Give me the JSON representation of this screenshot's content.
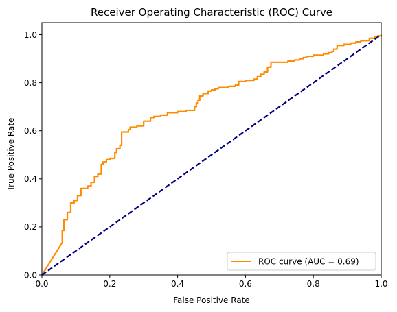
{
  "chart_data": {
    "type": "line",
    "title": "Receiver Operating Characteristic (ROC) Curve",
    "xlabel": "False Positive Rate",
    "ylabel": "True Positive Rate",
    "xlim": [
      0.0,
      1.0
    ],
    "ylim": [
      0.0,
      1.05
    ],
    "x_ticks": [
      "0.0",
      "0.2",
      "0.4",
      "0.6",
      "0.8",
      "1.0"
    ],
    "y_ticks": [
      "0.0",
      "0.2",
      "0.4",
      "0.6",
      "0.8",
      "1.0"
    ],
    "grid": false,
    "legend_position": "lower-right",
    "series": [
      {
        "name": "ROC curve (AUC = 0.69)",
        "color": "#ff8c00",
        "style": "solid",
        "x": [
          0.0,
          0.06,
          0.06,
          0.065,
          0.065,
          0.075,
          0.075,
          0.085,
          0.085,
          0.095,
          0.095,
          0.105,
          0.105,
          0.115,
          0.115,
          0.135,
          0.135,
          0.145,
          0.145,
          0.155,
          0.155,
          0.165,
          0.165,
          0.175,
          0.175,
          0.18,
          0.18,
          0.19,
          0.19,
          0.2,
          0.2,
          0.215,
          0.215,
          0.22,
          0.22,
          0.23,
          0.23,
          0.235,
          0.235,
          0.255,
          0.255,
          0.26,
          0.26,
          0.28,
          0.28,
          0.3,
          0.3,
          0.32,
          0.32,
          0.33,
          0.33,
          0.35,
          0.35,
          0.37,
          0.37,
          0.4,
          0.4,
          0.425,
          0.425,
          0.45,
          0.45,
          0.455,
          0.455,
          0.46,
          0.46,
          0.465,
          0.465,
          0.475,
          0.475,
          0.49,
          0.49,
          0.5,
          0.5,
          0.51,
          0.51,
          0.52,
          0.52,
          0.55,
          0.55,
          0.57,
          0.57,
          0.58,
          0.58,
          0.6,
          0.6,
          0.625,
          0.625,
          0.635,
          0.635,
          0.645,
          0.645,
          0.655,
          0.655,
          0.665,
          0.665,
          0.675,
          0.675,
          0.725,
          0.725,
          0.745,
          0.745,
          0.76,
          0.76,
          0.77,
          0.77,
          0.78,
          0.78,
          0.8,
          0.8,
          0.83,
          0.83,
          0.845,
          0.845,
          0.855,
          0.855,
          0.86,
          0.86,
          0.87,
          0.87,
          0.89,
          0.89,
          0.91,
          0.91,
          0.925,
          0.925,
          0.94,
          0.94,
          0.965,
          0.965,
          0.98,
          0.98,
          0.99,
          0.99,
          1.0,
          1.0
        ],
        "y": [
          0.0,
          0.135,
          0.185,
          0.185,
          0.23,
          0.23,
          0.26,
          0.26,
          0.3,
          0.3,
          0.31,
          0.31,
          0.33,
          0.33,
          0.36,
          0.36,
          0.37,
          0.37,
          0.385,
          0.385,
          0.41,
          0.41,
          0.42,
          0.42,
          0.46,
          0.46,
          0.47,
          0.47,
          0.48,
          0.48,
          0.485,
          0.485,
          0.51,
          0.51,
          0.525,
          0.525,
          0.54,
          0.54,
          0.595,
          0.595,
          0.605,
          0.605,
          0.615,
          0.615,
          0.62,
          0.62,
          0.64,
          0.64,
          0.655,
          0.655,
          0.66,
          0.66,
          0.665,
          0.665,
          0.675,
          0.675,
          0.68,
          0.68,
          0.685,
          0.685,
          0.7,
          0.7,
          0.715,
          0.715,
          0.725,
          0.725,
          0.745,
          0.745,
          0.755,
          0.755,
          0.765,
          0.765,
          0.77,
          0.77,
          0.775,
          0.775,
          0.78,
          0.78,
          0.785,
          0.785,
          0.79,
          0.79,
          0.805,
          0.805,
          0.81,
          0.81,
          0.815,
          0.815,
          0.825,
          0.825,
          0.835,
          0.835,
          0.845,
          0.845,
          0.865,
          0.865,
          0.885,
          0.885,
          0.89,
          0.89,
          0.895,
          0.895,
          0.9,
          0.9,
          0.905,
          0.905,
          0.91,
          0.91,
          0.915,
          0.915,
          0.92,
          0.92,
          0.925,
          0.925,
          0.93,
          0.93,
          0.94,
          0.94,
          0.955,
          0.955,
          0.96,
          0.96,
          0.965,
          0.965,
          0.97,
          0.97,
          0.975,
          0.975,
          0.985,
          0.985,
          0.99,
          0.99,
          0.995,
          0.995,
          1.0
        ]
      },
      {
        "name": "",
        "color": "#000080",
        "style": "dashed",
        "x": [
          0.0,
          1.0
        ],
        "y": [
          0.0,
          1.0
        ]
      }
    ]
  }
}
